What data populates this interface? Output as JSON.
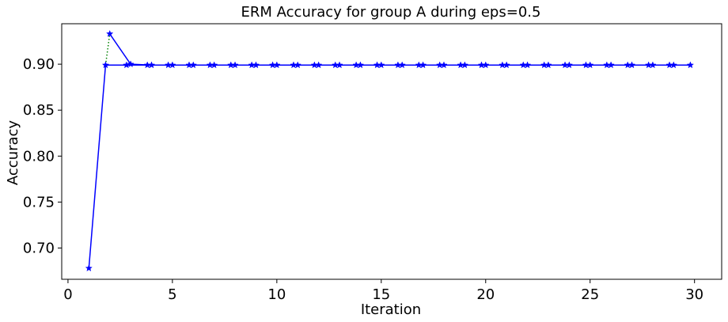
{
  "chart_data": {
    "type": "line",
    "title": "ERM Accuracy for group A during eps=0.5",
    "xlabel": "Iteration",
    "ylabel": "Accuracy",
    "xlim": [
      -0.3,
      31.3
    ],
    "ylim": [
      0.666,
      0.944
    ],
    "xticks": [
      0,
      5,
      10,
      15,
      20,
      25,
      30
    ],
    "yticks": [
      0.7,
      0.75,
      0.8,
      0.85,
      0.9
    ],
    "ytick_labels": [
      "0.70",
      "0.75",
      "0.80",
      "0.85",
      "0.90"
    ],
    "grid": false,
    "legend": "none",
    "series": [
      {
        "color": "#0000ff",
        "linestyle": "solid",
        "marker": "star",
        "x": [
          1,
          1.8,
          2.8,
          3.8,
          4.8,
          5.8,
          6.8,
          7.8,
          8.8,
          9.8,
          10.8,
          11.8,
          12.8,
          13.8,
          14.8,
          15.8,
          16.8,
          17.8,
          18.8,
          19.8,
          20.8,
          21.8,
          22.8,
          23.8,
          24.8,
          25.8,
          26.8,
          27.8,
          28.8,
          29.8
        ],
        "y": [
          0.678,
          0.899,
          0.899,
          0.899,
          0.899,
          0.899,
          0.899,
          0.899,
          0.899,
          0.899,
          0.899,
          0.899,
          0.899,
          0.899,
          0.899,
          0.899,
          0.899,
          0.899,
          0.899,
          0.899,
          0.899,
          0.899,
          0.899,
          0.899,
          0.899,
          0.899,
          0.899,
          0.899,
          0.899,
          0.899
        ]
      },
      {
        "color": "#0000ff",
        "linestyle": "solid",
        "marker": "star",
        "x": [
          2,
          3,
          4,
          5,
          6,
          7,
          8,
          9,
          10,
          11,
          12,
          13,
          14,
          15,
          16,
          17,
          18,
          19,
          20,
          21,
          22,
          23,
          24,
          25,
          26,
          27,
          28,
          29
        ],
        "y": [
          0.933,
          0.9,
          0.899,
          0.899,
          0.899,
          0.899,
          0.899,
          0.899,
          0.899,
          0.899,
          0.899,
          0.899,
          0.899,
          0.899,
          0.899,
          0.899,
          0.899,
          0.899,
          0.899,
          0.899,
          0.899,
          0.899,
          0.899,
          0.899,
          0.899,
          0.899,
          0.899,
          0.899
        ]
      },
      {
        "color": "#008000",
        "linestyle": "dotted",
        "marker": "none",
        "x": [
          1.8,
          2
        ],
        "y": [
          0.899,
          0.933
        ]
      }
    ]
  }
}
